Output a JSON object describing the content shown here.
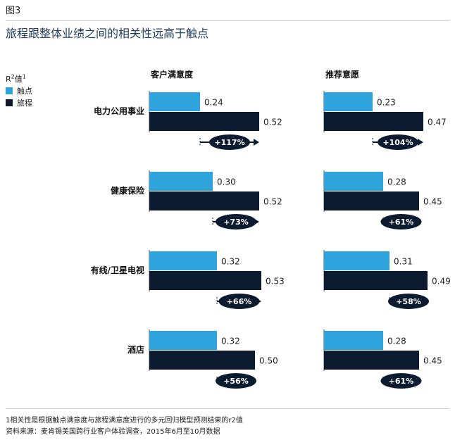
{
  "figure_label": "图3",
  "title": "旅程跟整体业绩之间的相关性远高于触点",
  "legend": {
    "title_main": "R",
    "title_sup": "2",
    "title_rest": "值",
    "title_note": "1",
    "items": [
      {
        "label": "触点",
        "color": "#2ea3dc"
      },
      {
        "label": "旅程",
        "color": "#0d1b30"
      }
    ]
  },
  "footnotes": [
    "1相关性是根据触点满意度与旅程满意度进行的多元回归模型预测结果的r2值",
    "资料来源：麦肯锡美国跨行业客户体验调查，2015年6月至10月数据"
  ],
  "chart_data": {
    "type": "bar",
    "orientation": "horizontal",
    "panels": [
      "客户满意度",
      "推荐意愿"
    ],
    "categories": [
      "电力公用事业",
      "健康保险",
      "有线/卫星电视",
      "酒店"
    ],
    "series": [
      {
        "name": "触点",
        "color": "#2ea3dc",
        "values": [
          [
            0.24,
            0.23
          ],
          [
            0.3,
            0.28
          ],
          [
            0.32,
            0.31
          ],
          [
            0.32,
            0.28
          ]
        ]
      },
      {
        "name": "旅程",
        "color": "#0d1b30",
        "values": [
          [
            0.52,
            0.47
          ],
          [
            0.52,
            0.45
          ],
          [
            0.53,
            0.49
          ],
          [
            0.5,
            0.45
          ]
        ]
      }
    ],
    "value_labels": {
      "触点": [
        [
          "0.24",
          "0.23"
        ],
        [
          "0.30",
          "0.28"
        ],
        [
          "0.32",
          "0.31"
        ],
        [
          "0.32",
          "0.28"
        ]
      ],
      "旅程": [
        [
          "0.52",
          "0.47"
        ],
        [
          "0.52",
          "0.45"
        ],
        [
          "0.53",
          "0.49"
        ],
        [
          "0.50",
          "0.45"
        ]
      ]
    },
    "uplift_labels": [
      [
        "+117%",
        "+104%"
      ],
      [
        "+73%",
        "+61%"
      ],
      [
        "+66%",
        "+58%"
      ],
      [
        "+56%",
        "+61%"
      ]
    ],
    "xlim": [
      0,
      0.6
    ],
    "grid": false,
    "legend_position": "top-left"
  }
}
